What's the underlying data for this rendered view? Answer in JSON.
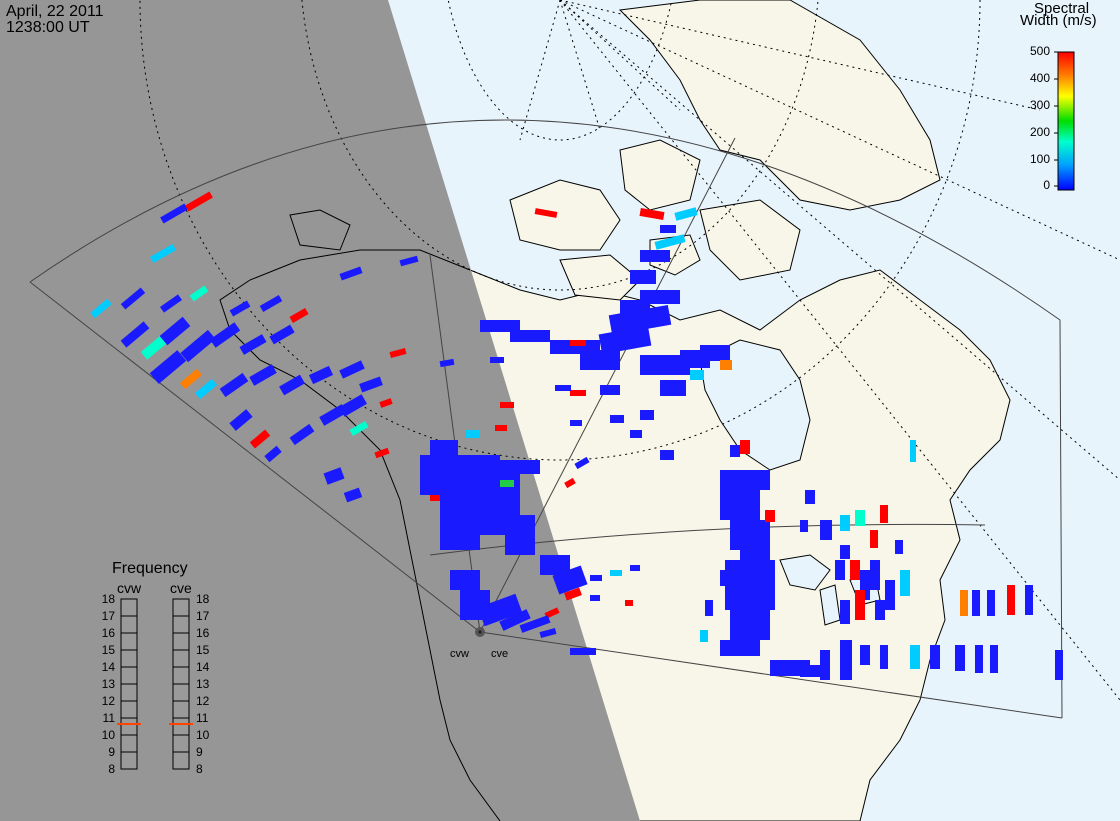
{
  "header": {
    "date": "April, 22 2011",
    "time": "1238:00 UT"
  },
  "colorbar": {
    "title_line1": "Spectral",
    "title_line2": "Width (m/s)",
    "ticks": [
      "500",
      "400",
      "300",
      "200",
      "100",
      "0"
    ],
    "colors": [
      "#ff0000",
      "#ff7f00",
      "#ffff00",
      "#00dd00",
      "#00ffcc",
      "#00a0ff",
      "#0000ff"
    ]
  },
  "frequency": {
    "title": "Frequency",
    "radar_left": "cvw",
    "radar_right": "cve",
    "ticks": [
      "18",
      "17",
      "16",
      "15",
      "14",
      "13",
      "12",
      "11",
      "10",
      "9",
      "8"
    ],
    "selected_left": "11",
    "selected_right": "11",
    "marker_color": "#ff4400"
  },
  "radars": {
    "left_label": "cvw",
    "right_label": "cve"
  },
  "colors": {
    "night": "#969696",
    "ocean": "#e8f4fc",
    "land": "#f8f6e8",
    "low": "#1a1aff"
  }
}
